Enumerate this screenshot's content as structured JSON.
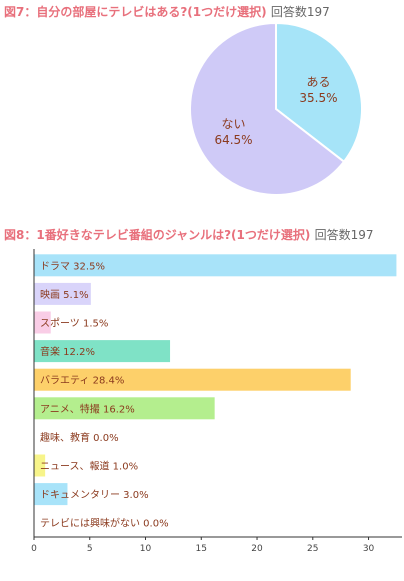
{
  "chart_data": [
    {
      "type": "pie",
      "title": "図7：自分の部屋にテレビはある?(1つだけ選択)",
      "respondents_label": "回答数197",
      "slices": [
        {
          "label": "ある",
          "value": 35.5,
          "value_text": "35.5%",
          "color": "#a6e4f8"
        },
        {
          "label": "ない",
          "value": 64.5,
          "value_text": "64.5%",
          "color": "#cfcaf7"
        }
      ],
      "start": "12 o'clock, clockwise"
    },
    {
      "type": "bar",
      "orientation": "horizontal",
      "title": "図8：1番好きなテレビ番組のジャンルは?(1つだけ選択)",
      "respondents_label": "回答数197",
      "categories": [
        "ドラマ",
        "映画",
        "スポーツ",
        "音楽",
        "バラエティ",
        "アニメ、特撮",
        "趣味、教育",
        "ニュース、報道",
        "ドキュメンタリー",
        "テレビには興味がない"
      ],
      "values": [
        32.5,
        5.1,
        1.5,
        12.2,
        28.4,
        16.2,
        0.0,
        1.0,
        3.0,
        0.0
      ],
      "value_texts": [
        "32.5%",
        "5.1%",
        "1.5%",
        "12.2%",
        "28.4%",
        "16.2%",
        "0.0%",
        "1.0%",
        "3.0%",
        "0.0%"
      ],
      "colors": [
        "#a8e3f9",
        "#d9d4fa",
        "#f9cde6",
        "#7fe2c6",
        "#fdd06a",
        "#b4ee8e",
        "#f5a3bd",
        "#f7f48a",
        "#a8e3f9",
        "#d9d4fa"
      ],
      "xlim": [
        0,
        33
      ],
      "ticks": [
        0,
        5,
        10,
        15,
        20,
        25,
        30
      ],
      "grid": false
    }
  ]
}
